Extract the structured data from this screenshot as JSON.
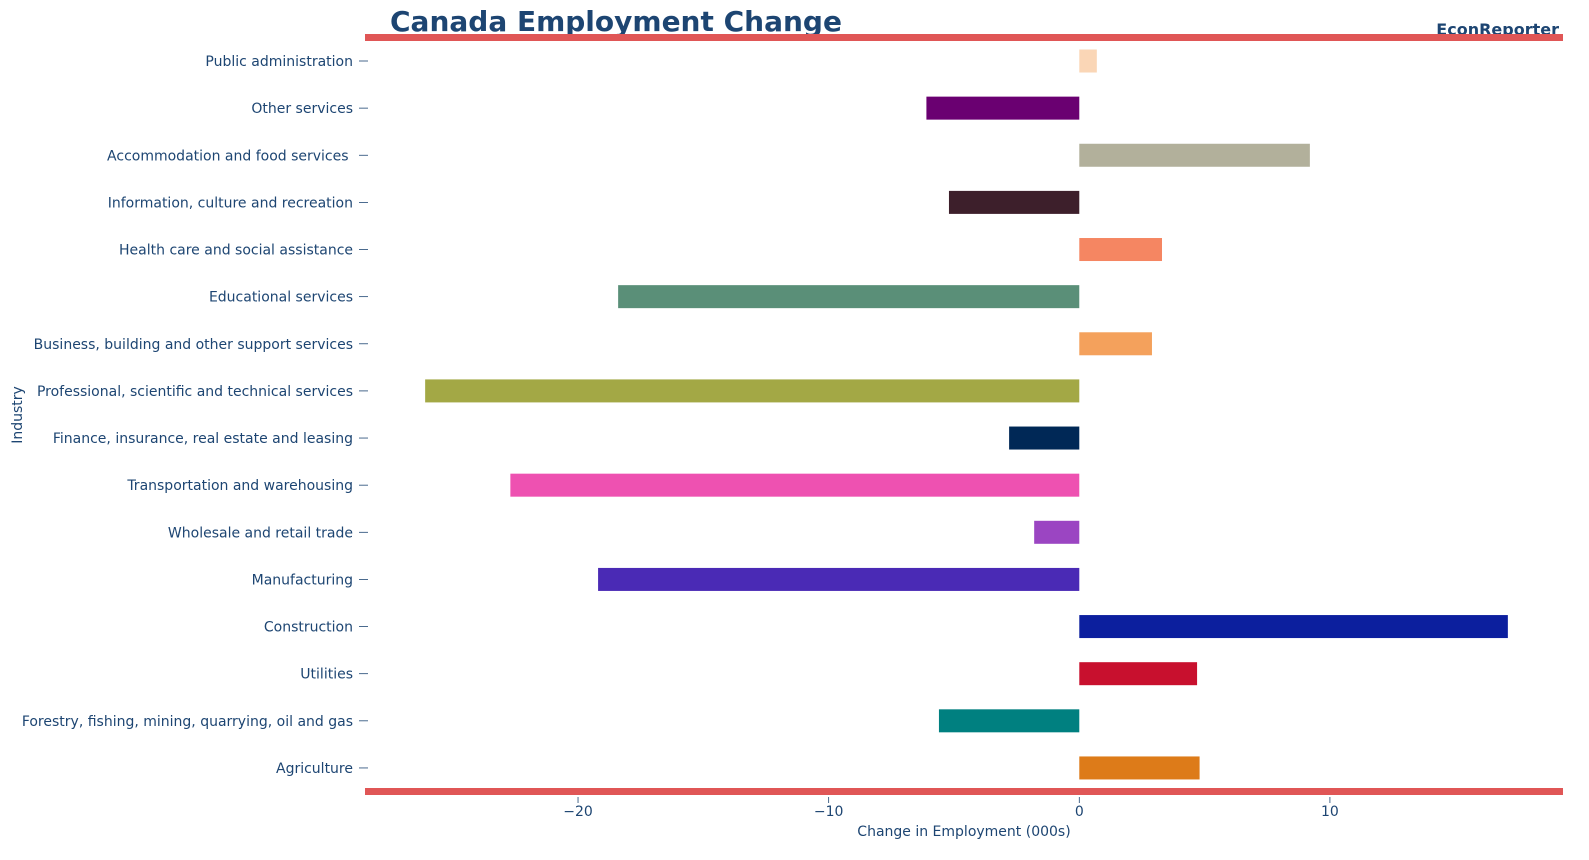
{
  "chart_data": {
    "type": "bar",
    "orientation": "horizontal",
    "title": "Canada Employment Change",
    "brand": "EconReporter",
    "xlabel": "Change in Employment (000s)",
    "ylabel": "Industry",
    "xlim": [
      -28.5,
      19.3
    ],
    "xticks": [
      -20,
      -10,
      0,
      10
    ],
    "xtick_labels": [
      "−20",
      "−10",
      "0",
      "10"
    ],
    "grid": false,
    "accent_color": "#e05656",
    "text_color": "#1d4572",
    "categories": [
      "Agriculture",
      "Forestry, fishing, mining, quarrying, oil and gas",
      "Utilities",
      "Construction",
      "Manufacturing",
      "Wholesale and retail trade",
      "Transportation and warehousing",
      "Finance, insurance, real estate and leasing",
      "Professional, scientific and technical services",
      "Business, building and other support services",
      "Educational services",
      "Health care and social assistance",
      "Information, culture and recreation",
      "Accommodation and food services ",
      "Other services",
      "Public administration"
    ],
    "values": [
      4.8,
      -5.6,
      4.7,
      17.1,
      -19.2,
      -1.8,
      -22.7,
      -2.8,
      -26.1,
      2.9,
      -18.4,
      3.3,
      -5.2,
      9.2,
      -6.1,
      0.7
    ],
    "colors": [
      "#dd7b19",
      "#008080",
      "#c8102e",
      "#0c1f9e",
      "#4a2ab5",
      "#9b45c2",
      "#ee51b1",
      "#002856",
      "#a3a845",
      "#f4a15c",
      "#5a8f78",
      "#f58662",
      "#3d1f2b",
      "#b2b09b",
      "#6a0071",
      "#fad6b6"
    ]
  }
}
